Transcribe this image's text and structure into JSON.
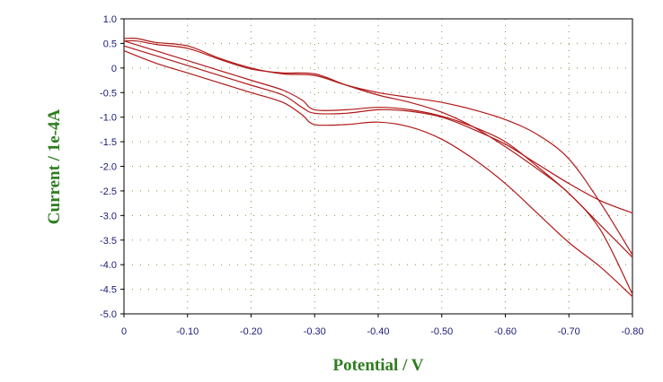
{
  "chart_data": {
    "type": "line",
    "title": "",
    "xlabel": "Potential / V",
    "ylabel": "Current / 1e-4A",
    "xlim": [
      0,
      -0.8
    ],
    "ylim": [
      -5.0,
      1.0
    ],
    "x_ticks": [
      "0",
      "-0.10",
      "-0.20",
      "-0.30",
      "-0.40",
      "-0.50",
      "-0.60",
      "-0.70",
      "-0.80"
    ],
    "y_ticks": [
      "1.0",
      "0.5",
      "0",
      "-0.5",
      "-1.0",
      "-1.5",
      "-2.0",
      "-2.5",
      "-3.0",
      "-3.5",
      "-4.0",
      "-4.5",
      "-5.0"
    ],
    "grid": "dotted",
    "line_color": "#b01818",
    "series": [
      {
        "x": [
          0,
          -0.05,
          -0.1,
          -0.15,
          -0.2,
          -0.25,
          -0.28,
          -0.3,
          -0.35,
          -0.4,
          -0.45,
          -0.5,
          -0.55,
          -0.6,
          -0.65,
          -0.7,
          -0.75,
          -0.8
        ],
        "y": [
          0.55,
          0.35,
          0.15,
          -0.05,
          -0.25,
          -0.45,
          -0.65,
          -0.85,
          -0.85,
          -0.8,
          -0.85,
          -0.98,
          -1.2,
          -1.5,
          -2.0,
          -2.55,
          -3.2,
          -3.85
        ]
      },
      {
        "x": [
          0,
          -0.05,
          -0.1,
          -0.15,
          -0.2,
          -0.25,
          -0.28,
          -0.3,
          -0.35,
          -0.4,
          -0.45,
          -0.5,
          -0.55,
          -0.6,
          -0.65,
          -0.7,
          -0.75,
          -0.8
        ],
        "y": [
          0.45,
          0.25,
          0.05,
          -0.15,
          -0.35,
          -0.55,
          -0.8,
          -0.92,
          -0.92,
          -0.85,
          -0.88,
          -1.0,
          -1.25,
          -1.55,
          -1.95,
          -2.35,
          -2.7,
          -2.95
        ]
      },
      {
        "x": [
          0,
          -0.05,
          -0.1,
          -0.15,
          -0.2,
          -0.25,
          -0.28,
          -0.3,
          -0.35,
          -0.4,
          -0.45,
          -0.5,
          -0.55,
          -0.6,
          -0.65,
          -0.7,
          -0.75,
          -0.8
        ],
        "y": [
          0.35,
          0.1,
          -0.1,
          -0.3,
          -0.5,
          -0.7,
          -0.95,
          -1.15,
          -1.15,
          -1.1,
          -1.2,
          -1.45,
          -1.85,
          -2.35,
          -2.95,
          -3.55,
          -4.05,
          -4.65
        ]
      },
      {
        "x": [
          0,
          -0.02,
          -0.05,
          -0.1,
          -0.15,
          -0.2,
          -0.25,
          -0.3,
          -0.35,
          -0.4,
          -0.45,
          -0.5,
          -0.55,
          -0.6,
          -0.65,
          -0.7,
          -0.75,
          -0.8
        ],
        "y": [
          0.6,
          0.6,
          0.52,
          0.45,
          0.2,
          0.0,
          -0.12,
          -0.15,
          -0.35,
          -0.5,
          -0.6,
          -0.7,
          -0.85,
          -1.05,
          -1.35,
          -1.85,
          -2.75,
          -3.8
        ]
      },
      {
        "x": [
          0,
          -0.02,
          -0.05,
          -0.1,
          -0.15,
          -0.2,
          -0.25,
          -0.3,
          -0.35,
          -0.4,
          -0.45,
          -0.5,
          -0.55,
          -0.6,
          -0.65,
          -0.7,
          -0.75,
          -0.8
        ],
        "y": [
          0.55,
          0.55,
          0.48,
          0.4,
          0.18,
          -0.02,
          -0.1,
          -0.12,
          -0.35,
          -0.55,
          -0.7,
          -0.9,
          -1.2,
          -1.6,
          -2.05,
          -2.55,
          -3.3,
          -4.6
        ]
      }
    ]
  }
}
